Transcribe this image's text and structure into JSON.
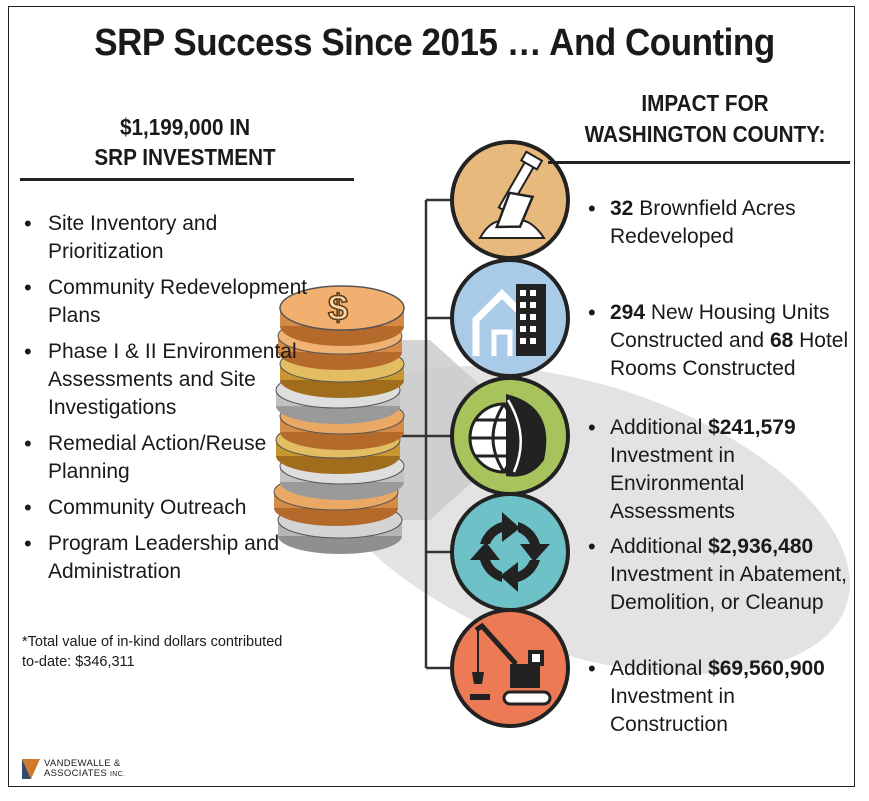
{
  "title": "SRP Success Since 2015 … And Counting",
  "investment": {
    "line1": "$1,199,000 IN",
    "line2": "SRP INVESTMENT"
  },
  "services": [
    {
      "line1": "Site Inventory and",
      "line2": "Prioritization"
    },
    {
      "line1": "Community Redevelopment",
      "line2": "Plans"
    },
    {
      "line1": "Phase I & II Environmental",
      "line2": "Assessments and Site",
      "line3": "Investigations"
    },
    {
      "line1": "Remedial Action/Reuse",
      "line2": "Planning"
    },
    {
      "line1": "Community Outreach"
    },
    {
      "line1": "Program Leadership and",
      "line2": "Administration"
    }
  ],
  "note": {
    "line1": "*Total value of in-kind dollars contributed",
    "line2": "to-date: $346,311"
  },
  "impact_header": {
    "line1": "IMPACT FOR",
    "line2": "WASHINGTON COUNTY:"
  },
  "impacts": [
    {
      "icon": "shovel-icon",
      "color": "#e8b97c",
      "value": "32",
      "l1_rest": " Brownfield Acres",
      "l2": "Redeveloped"
    },
    {
      "icon": "housing-icon",
      "color": "#a9cbe8",
      "value": "294",
      "l1_rest": " New Housing Units",
      "l2a": "Constructed and ",
      "value2": "68",
      "l2b": " Hotel",
      "l3": "Rooms Constructed"
    },
    {
      "icon": "globe-leaf-icon",
      "color": "#a8c35c",
      "prefix": "Additional ",
      "value": "$241,579",
      "l2": "Investment in Environmental",
      "l3": "Assessments"
    },
    {
      "icon": "recycle-arrows-icon",
      "color": "#6fc1c8",
      "prefix": "Additional ",
      "value": "$2,936,480",
      "l2": "Investment in Abatement,",
      "l3": "Demolition, or Cleanup"
    },
    {
      "icon": "excavator-icon",
      "color": "#ec7a55",
      "prefix": "Additional ",
      "value": "$69,560,900",
      "l2": "Investment in Construction"
    }
  ],
  "logo": {
    "line1": "VANDEWALLE &",
    "line2": "ASSOCIATES",
    "suffix": "INC."
  }
}
